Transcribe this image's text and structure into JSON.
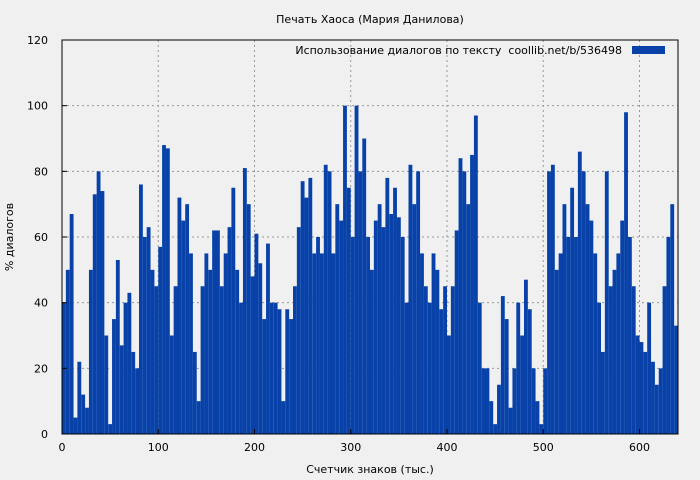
{
  "chart_data": {
    "type": "bar",
    "title": "Печать Хаоса (Мария Данилова)",
    "xlabel": "Счетчик знаков (тыс.)",
    "ylabel": "% диалогов",
    "xlim": [
      0,
      640
    ],
    "ylim": [
      0,
      120
    ],
    "grid": true,
    "legend_position": "top-right",
    "x_ticks": [
      "0",
      "100",
      "200",
      "300",
      "400",
      "500",
      "600"
    ],
    "y_ticks": [
      "0",
      "20",
      "40",
      "60",
      "80",
      "100",
      "120"
    ],
    "bin_width": 4,
    "series": [
      {
        "name": "Использование диалогов по тексту  coollib.net/b/536498",
        "color": "#0842a8",
        "values": [
          40,
          50,
          67,
          5,
          22,
          12,
          8,
          50,
          73,
          80,
          74,
          30,
          3,
          35,
          53,
          27,
          40,
          43,
          25,
          20,
          76,
          60,
          63,
          50,
          45,
          57,
          88,
          87,
          30,
          45,
          72,
          65,
          70,
          55,
          25,
          10,
          45,
          55,
          50,
          62,
          62,
          45,
          55,
          63,
          75,
          50,
          40,
          81,
          70,
          48,
          61,
          52,
          35,
          58,
          40,
          40,
          38,
          10,
          38,
          35,
          45,
          63,
          77,
          72,
          78,
          55,
          60,
          55,
          82,
          80,
          55,
          70,
          65,
          100,
          75,
          60,
          100,
          80,
          90,
          60,
          50,
          65,
          70,
          63,
          78,
          67,
          75,
          66,
          60,
          40,
          82,
          70,
          80,
          55,
          45,
          40,
          55,
          50,
          38,
          45,
          30,
          45,
          62,
          84,
          80,
          70,
          85,
          97,
          40,
          20,
          20,
          10,
          3,
          15,
          42,
          35,
          8,
          20,
          40,
          30,
          47,
          38,
          20,
          10,
          3,
          20,
          80,
          82,
          50,
          55,
          70,
          60,
          75,
          60,
          86,
          80,
          70,
          65,
          55,
          40,
          25,
          80,
          45,
          50,
          55,
          65,
          98,
          60,
          45,
          30,
          28,
          25,
          40,
          22,
          15,
          20,
          45,
          60,
          70,
          33
        ]
      }
    ]
  }
}
